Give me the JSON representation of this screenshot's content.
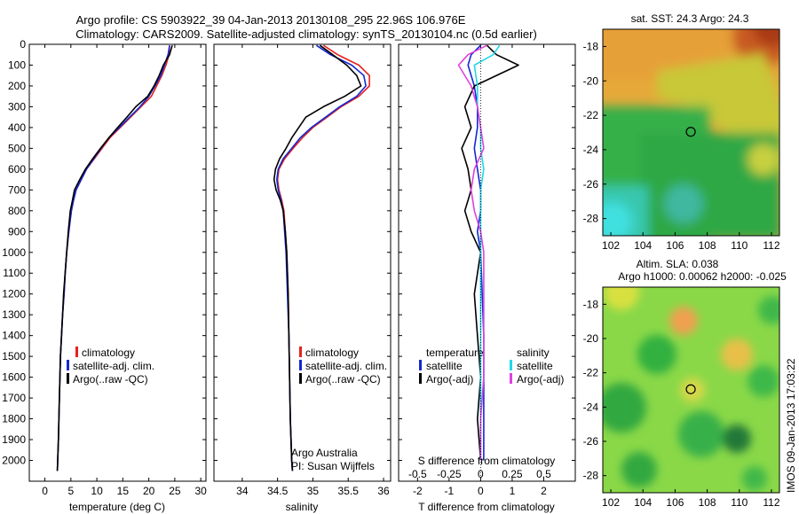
{
  "figure": {
    "title_line1": "Argo profile: CS 5903922_39 04-Jan-2013 20130108_295 22.96S 106.976E",
    "title_line2": "Climatology: CARS2009. Satellite-adjusted climatology: synTS_20130104.nc (0.5d earlier)",
    "side_stamp": "IMOS 09-Jan-2013 17:03:22",
    "credit_line1": "Argo Australia",
    "credit_line2": "PI: Susan Wijffels"
  },
  "colors": {
    "climatology": "#e8201e",
    "satellite": "#1428d2",
    "argo": "#000000",
    "sal_satellite": "#22d8e8",
    "sal_argo": "#e040e0"
  },
  "chart_data": [
    {
      "type": "line",
      "id": "temperature",
      "xlabel": "temperature (deg C)",
      "xlim": [
        -3,
        31
      ],
      "ylim": [
        2100,
        0
      ],
      "xticks": [
        0,
        5,
        10,
        15,
        20,
        25,
        30
      ],
      "yticks": [
        0,
        100,
        200,
        300,
        400,
        500,
        600,
        700,
        800,
        900,
        1000,
        1100,
        1200,
        1300,
        1400,
        1500,
        1600,
        1700,
        1800,
        1900,
        2000
      ],
      "legend": [
        "climatology",
        "satellite-adj. clim.",
        "Argo(..raw -QC)"
      ],
      "series": [
        {
          "name": "climatology",
          "color": "climatology",
          "x": [
            24.0,
            23.9,
            23.3,
            22.5,
            21.5,
            20.5,
            18.5,
            16.5,
            14.5,
            12.5,
            11.0,
            9.5,
            8.0,
            7.0,
            6.0,
            5.5,
            5.1,
            4.6,
            4.2,
            3.9,
            3.7,
            3.4,
            3.2,
            3.0,
            2.8,
            2.6,
            2.4
          ],
          "y": [
            5,
            50,
            100,
            150,
            200,
            250,
            300,
            350,
            400,
            450,
            500,
            550,
            600,
            650,
            700,
            750,
            800,
            900,
            1000,
            1100,
            1200,
            1300,
            1400,
            1500,
            1700,
            1900,
            2050
          ]
        },
        {
          "name": "satellite-adj. clim.",
          "color": "satellite",
          "x": [
            24.0,
            23.7,
            23.0,
            22.3,
            21.2,
            20.0,
            18.3,
            16.3,
            14.3,
            12.3,
            10.8,
            9.4,
            8.0,
            7.0,
            6.0,
            5.5,
            5.1,
            4.6,
            4.2,
            3.9,
            3.7,
            3.4,
            3.2,
            3.0,
            2.8,
            2.6,
            2.4
          ],
          "y": [
            5,
            50,
            100,
            150,
            200,
            250,
            300,
            350,
            400,
            450,
            500,
            550,
            600,
            650,
            700,
            750,
            800,
            900,
            1000,
            1100,
            1200,
            1300,
            1400,
            1500,
            1700,
            1900,
            2050
          ]
        },
        {
          "name": "Argo(..raw -QC)",
          "color": "argo",
          "x": [
            24.5,
            24.0,
            22.8,
            22.0,
            21.0,
            19.8,
            17.5,
            15.8,
            14.0,
            12.3,
            10.7,
            9.2,
            7.8,
            6.7,
            5.7,
            5.3,
            4.9,
            4.5,
            4.2,
            3.9,
            3.6,
            3.4,
            3.2,
            3.0,
            2.8,
            2.6,
            2.4
          ],
          "y": [
            5,
            50,
            100,
            150,
            200,
            250,
            300,
            350,
            400,
            450,
            500,
            550,
            600,
            650,
            700,
            750,
            800,
            900,
            1000,
            1100,
            1200,
            1300,
            1400,
            1500,
            1700,
            1900,
            2050
          ]
        }
      ]
    },
    {
      "type": "line",
      "id": "salinity",
      "xlabel": "salinity",
      "xlim": [
        33.6,
        36.1
      ],
      "ylim": [
        2100,
        0
      ],
      "xticks": [
        34,
        34.5,
        35,
        35.5,
        36
      ],
      "legend": [
        "climatology",
        "satellite-adj. clim.",
        "Argo(..raw -QC)"
      ],
      "series": [
        {
          "name": "climatology",
          "color": "climatology",
          "x": [
            35.15,
            35.35,
            35.65,
            35.8,
            35.8,
            35.65,
            35.4,
            35.2,
            35.0,
            34.85,
            34.72,
            34.6,
            34.52,
            34.5,
            34.52,
            34.56,
            34.59,
            34.61,
            34.63,
            34.65,
            34.66,
            34.67,
            34.68,
            34.7,
            34.71
          ],
          "y": [
            5,
            50,
            100,
            150,
            200,
            250,
            300,
            350,
            400,
            450,
            500,
            550,
            600,
            650,
            700,
            750,
            800,
            900,
            1000,
            1200,
            1400,
            1600,
            1800,
            2000,
            2050
          ]
        },
        {
          "name": "satellite-adj. clim.",
          "color": "satellite",
          "x": [
            35.05,
            35.25,
            35.55,
            35.72,
            35.75,
            35.62,
            35.38,
            35.18,
            34.98,
            34.82,
            34.7,
            34.58,
            34.51,
            34.49,
            34.51,
            34.55,
            34.58,
            34.6,
            34.62,
            34.64,
            34.66,
            34.67,
            34.68,
            34.7,
            34.71
          ],
          "y": [
            5,
            50,
            100,
            150,
            200,
            250,
            300,
            350,
            400,
            450,
            500,
            550,
            600,
            650,
            700,
            750,
            800,
            900,
            1000,
            1200,
            1400,
            1600,
            1800,
            2000,
            2050
          ]
        },
        {
          "name": "Argo(..raw -QC)",
          "color": "argo",
          "x": [
            35.1,
            35.28,
            35.48,
            35.62,
            35.68,
            35.45,
            35.15,
            34.9,
            34.8,
            34.7,
            34.62,
            34.53,
            34.47,
            34.45,
            34.48,
            34.54,
            34.58,
            34.61,
            34.63,
            34.65,
            34.66,
            34.67,
            34.68,
            34.7,
            34.71
          ],
          "y": [
            5,
            50,
            100,
            150,
            200,
            250,
            300,
            350,
            400,
            450,
            500,
            550,
            600,
            650,
            700,
            750,
            800,
            900,
            1000,
            1200,
            1400,
            1600,
            1800,
            2000,
            2050
          ]
        }
      ]
    },
    {
      "type": "line",
      "id": "difference",
      "xlabel": "T difference from climatology",
      "xlabel2": "S difference from climatology",
      "xlim": [
        -2.6,
        3.0
      ],
      "ylim": [
        2100,
        0
      ],
      "xticks": [
        -2,
        -1,
        0,
        1,
        2
      ],
      "xticks2": [
        "-0.5",
        "-0.25",
        "0",
        "0.25",
        "0.5"
      ],
      "legend_t_title": "temperature",
      "legend_s_title": "salinity",
      "legend": [
        "satellite",
        "Argo(-adj)",
        "satellite",
        "Argo(-adj)"
      ],
      "series": [
        {
          "name": "T satellite",
          "color": "satellite",
          "x": [
            0.0,
            -0.3,
            -0.4,
            -0.2,
            -0.1,
            -0.1,
            -0.2,
            -0.1,
            0.0,
            0.0,
            -0.1,
            0.0,
            0.05,
            0.1,
            0.1,
            0.1,
            0.1
          ],
          "y": [
            5,
            50,
            100,
            200,
            300,
            400,
            500,
            600,
            700,
            800,
            900,
            1000,
            1200,
            1400,
            1600,
            1800,
            2000
          ]
        },
        {
          "name": "T Argo(-adj)",
          "color": "argo",
          "x": [
            0.2,
            0.5,
            1.2,
            -0.2,
            -0.5,
            -0.3,
            -0.6,
            -0.4,
            -0.3,
            -0.5,
            -0.3,
            0.0,
            -0.2,
            -0.1,
            0.0,
            -0.1,
            0.0
          ],
          "y": [
            5,
            50,
            100,
            200,
            300,
            400,
            500,
            600,
            700,
            800,
            900,
            1000,
            1200,
            1400,
            1600,
            1800,
            2000
          ]
        },
        {
          "name": "S satellite",
          "color": "sal_satellite",
          "x": [
            0.6,
            0.4,
            -0.2,
            -0.1,
            -0.1,
            0.0,
            0.0,
            0.1,
            0.0,
            0.0,
            0.0,
            0.0,
            0.0,
            0.0,
            0.0,
            0.0,
            0.0
          ],
          "y": [
            5,
            50,
            100,
            200,
            300,
            400,
            500,
            600,
            700,
            800,
            900,
            1000,
            1200,
            1400,
            1600,
            1800,
            2000
          ]
        },
        {
          "name": "S Argo(-adj)",
          "color": "sal_argo",
          "x": [
            0.2,
            -0.4,
            -0.7,
            -0.3,
            -0.1,
            0.0,
            0.1,
            -0.2,
            -0.3,
            -0.2,
            0.0,
            0.1,
            0.1,
            0.1,
            0.1,
            0.0,
            0.0
          ],
          "y": [
            5,
            50,
            100,
            200,
            300,
            400,
            500,
            600,
            700,
            800,
            900,
            1000,
            1200,
            1400,
            1600,
            1800,
            2000
          ]
        }
      ]
    },
    {
      "type": "heatmap",
      "id": "sst_map",
      "title": "sat. SST: 24.3 Argo: 24.3",
      "xlim": [
        101.5,
        112.5
      ],
      "ylim": [
        -29,
        -17
      ],
      "xticks": [
        102,
        104,
        106,
        108,
        110,
        112
      ],
      "yticks": [
        -18,
        -20,
        -22,
        -24,
        -26,
        -28
      ],
      "marker": {
        "lon": 106.976,
        "lat": -22.96
      }
    },
    {
      "type": "heatmap",
      "id": "sla_map",
      "title": "Altim. SLA: 0.038",
      "subtitle": "Argo h1000: 0.00062 h2000: -0.025",
      "xlim": [
        101.5,
        112.5
      ],
      "ylim": [
        -29,
        -17
      ],
      "xticks": [
        102,
        104,
        106,
        108,
        110,
        112
      ],
      "yticks": [
        -18,
        -20,
        -22,
        -24,
        -26,
        -28
      ],
      "marker": {
        "lon": 106.976,
        "lat": -22.96
      }
    }
  ]
}
